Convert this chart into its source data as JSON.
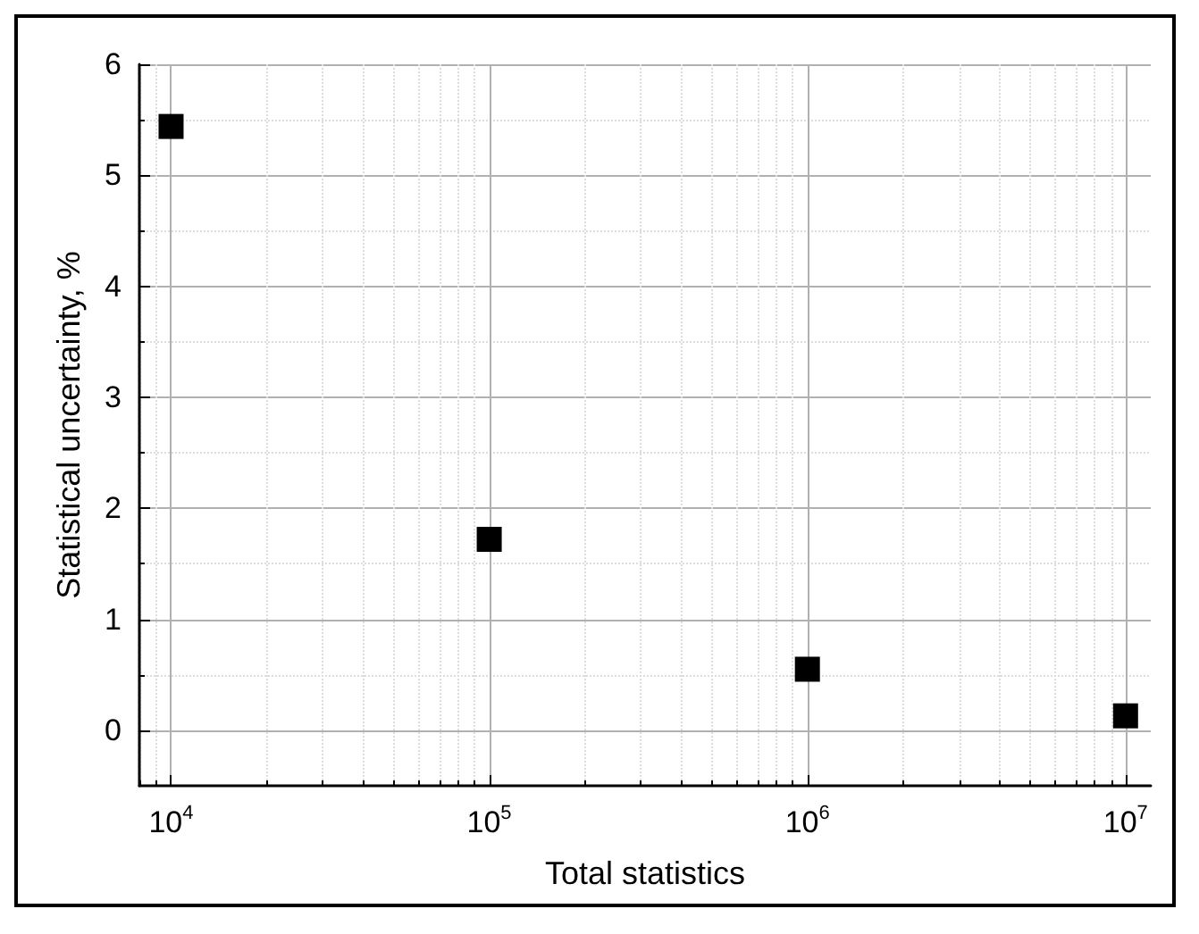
{
  "chart_data": {
    "type": "scatter",
    "xlabel": "Total statistics",
    "ylabel": "Statistical uncertainty, %",
    "x": [
      10000,
      100000,
      1000000,
      10000000
    ],
    "series": [
      {
        "color": "#000000",
        "values": [
          5.44,
          1.72,
          0.55,
          0.13
        ]
      }
    ],
    "log": "x",
    "xlim": [
      7950,
      12000000
    ],
    "xticks": [
      {
        "value": 10000,
        "label": "10$^{4}$"
      },
      {
        "value": 100000,
        "label": "10$^{5}$"
      },
      {
        "value": 1000000,
        "label": "10$^{6}$"
      },
      {
        "value": 10000000,
        "label": "10$^{7}$"
      }
    ],
    "ylim": [
      -0.5,
      6
    ],
    "yticks": [
      0,
      1,
      2,
      3,
      4,
      5,
      6
    ],
    "grid": true,
    "marker": "square"
  }
}
